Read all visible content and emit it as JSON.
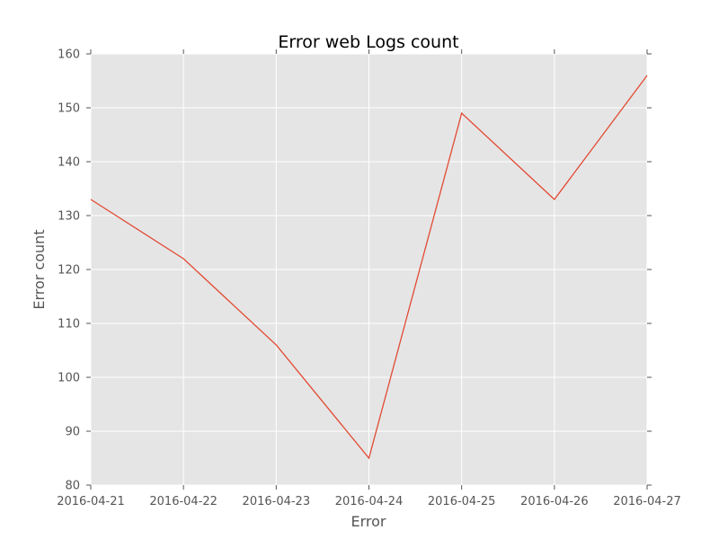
{
  "chart_data": {
    "type": "line",
    "title": "Error web Logs count",
    "xlabel": "Error",
    "ylabel": "Error count",
    "x": [
      "2016-04-21",
      "2016-04-22",
      "2016-04-23",
      "2016-04-24",
      "2016-04-25",
      "2016-04-26",
      "2016-04-27"
    ],
    "series": [
      {
        "values": [
          133,
          122,
          106,
          85,
          149,
          133,
          156
        ]
      }
    ],
    "ylim": [
      80,
      160
    ],
    "yticks": [
      80,
      90,
      100,
      110,
      120,
      130,
      140,
      150,
      160
    ],
    "grid": true,
    "legend": "none",
    "colors": {
      "line": "#e24a33",
      "plot_background": "#e5e5e5",
      "grid": "#ffffff",
      "text": "#555555"
    }
  }
}
